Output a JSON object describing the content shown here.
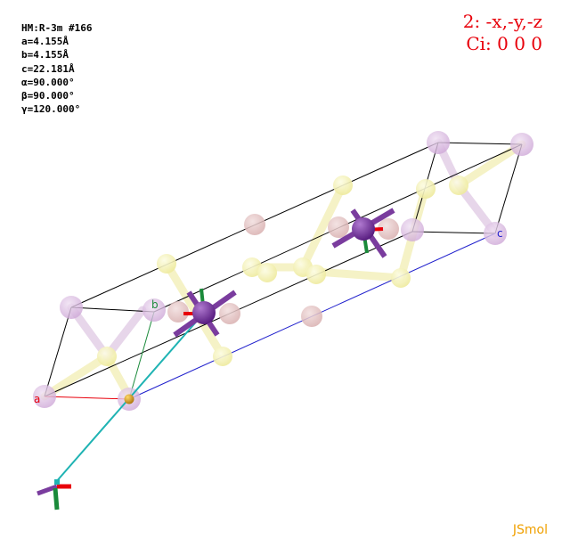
{
  "cell_info": {
    "space_group": "HM:R-3m #166",
    "a": "a=4.155Å",
    "b": "b=4.155Å",
    "c": "c=22.181Å",
    "alpha": "α=90.000°",
    "beta": "β=90.000°",
    "gamma": "γ=120.000°"
  },
  "symmetry_operation": {
    "line1": "2: -x,-y,-z",
    "line2": "Ci: 0 0 0"
  },
  "axes": {
    "a_label": "a",
    "b_label": "b",
    "c_label": "c"
  },
  "branding": "JSmol",
  "colors": {
    "a_axis": "#e8000b",
    "b_axis": "#1a8a3a",
    "c_axis": "#1e1ecc",
    "symmetry_axis": "#1fb3b3",
    "purple_atom": "#7a3c9e",
    "ghost_lilac": "#d9b8e0",
    "ghost_yellow": "#f4f1b0",
    "ghost_pink": "#e6c4c4",
    "gold_atom": "#d9a020"
  }
}
